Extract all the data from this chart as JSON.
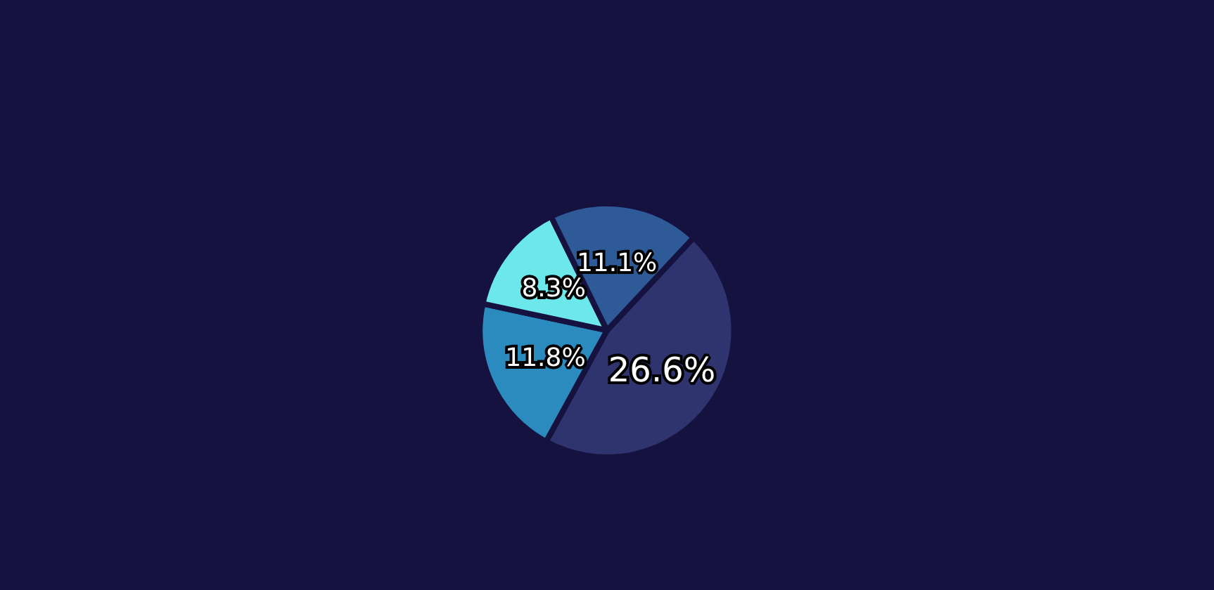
{
  "chart_data": {
    "type": "pie",
    "categories": [
      null,
      null,
      null,
      null
    ],
    "values": [
      26.6,
      11.8,
      8.3,
      11.1
    ],
    "colors": [
      "#2f336e",
      "#2b8bbf",
      "#6de8ea",
      "#2e5b97"
    ],
    "value_labels": [
      "26.6%",
      "11.8%",
      "8.3%",
      "11.1%"
    ]
  }
}
